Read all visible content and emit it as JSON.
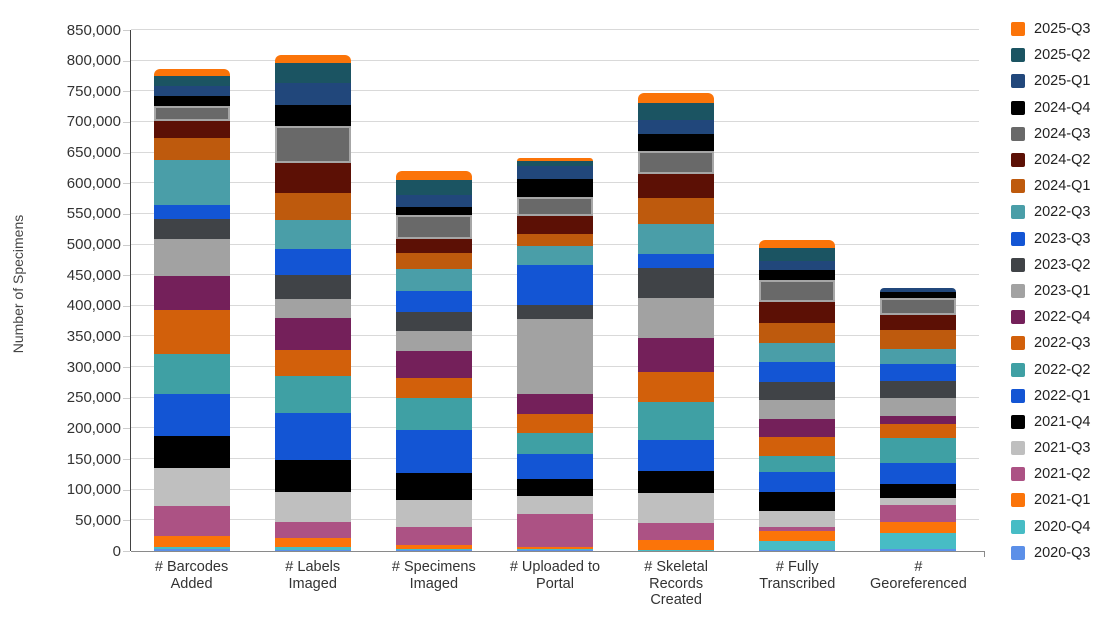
{
  "chart_data": {
    "type": "bar",
    "stacked": true,
    "title": "",
    "xlabel": "",
    "ylabel": "Number of Specimens",
    "ylim": [
      0,
      850000
    ],
    "ytick_step": 50000,
    "ytick_labels": [
      "0",
      "50,000",
      "100,000",
      "150,000",
      "200,000",
      "250,000",
      "300,000",
      "350,000",
      "400,000",
      "450,000",
      "500,000",
      "550,000",
      "600,000",
      "650,000",
      "700,000",
      "750,000",
      "800,000",
      "850,000"
    ],
    "grid": true,
    "legend_position": "right",
    "categories": [
      "# Barcodes Added",
      "# Labels Imaged",
      "# Specimens Imaged",
      "# Uploaded to Portal",
      "# Skeletal Records Created",
      "# Fully Transcribed",
      "# Georeferenced"
    ],
    "series": [
      {
        "name": "2025-Q3",
        "color": "#FB7409",
        "outlined": false,
        "values": [
          11000,
          14000,
          15000,
          4000,
          16000,
          13000,
          0
        ]
      },
      {
        "name": "2025-Q2",
        "color": "#1B5462",
        "outlined": false,
        "values": [
          17000,
          33000,
          24000,
          9000,
          28000,
          22000,
          0
        ]
      },
      {
        "name": "2025-Q1",
        "color": "#21477B",
        "outlined": false,
        "values": [
          16000,
          35000,
          20000,
          21000,
          23000,
          15000,
          8000
        ]
      },
      {
        "name": "2024-Q4",
        "color": "#000000",
        "outlined": false,
        "values": [
          17000,
          35000,
          12000,
          29000,
          27000,
          15000,
          9000
        ]
      },
      {
        "name": "2024-Q3",
        "color": "#696969",
        "outlined": true,
        "values": [
          24000,
          59000,
          39000,
          31000,
          38000,
          37000,
          27000
        ]
      },
      {
        "name": "2024-Q2",
        "color": "#5C1005",
        "outlined": false,
        "values": [
          28000,
          50000,
          24000,
          30000,
          39000,
          34000,
          25000
        ]
      },
      {
        "name": "2024-Q1",
        "color": "#BE5A0D",
        "outlined": false,
        "values": [
          36000,
          44000,
          25000,
          19000,
          42000,
          32000,
          31000
        ]
      },
      {
        "name": "2022-Q3",
        "color": "#4A9EA8",
        "outlined": false,
        "values": [
          74000,
          47000,
          37000,
          31000,
          49000,
          32000,
          24000
        ]
      },
      {
        "name": "2023-Q3",
        "color": "#1355D4",
        "outlined": false,
        "values": [
          22000,
          43000,
          34000,
          65000,
          23000,
          32000,
          29000
        ]
      },
      {
        "name": "2023-Q2",
        "color": "#404347",
        "outlined": false,
        "values": [
          33000,
          38000,
          31000,
          24000,
          49000,
          30000,
          27000
        ]
      },
      {
        "name": "2023-Q1",
        "color": "#A2A2A2",
        "outlined": false,
        "values": [
          60000,
          32000,
          33000,
          121000,
          66000,
          31000,
          30000
        ]
      },
      {
        "name": "2022-Q4",
        "color": "#74205A",
        "outlined": false,
        "values": [
          56000,
          52000,
          44000,
          33000,
          55000,
          29000,
          13000
        ]
      },
      {
        "name": "2022-Q3",
        "color": "#D2600B",
        "outlined": false,
        "values": [
          72000,
          42000,
          33000,
          32000,
          49000,
          31000,
          22000
        ]
      },
      {
        "name": "2022-Q2",
        "color": "#3FA0A4",
        "outlined": false,
        "values": [
          65000,
          61000,
          51000,
          33000,
          61000,
          26000,
          41000
        ]
      },
      {
        "name": "2022-Q1",
        "color": "#1355D4",
        "outlined": false,
        "values": [
          69000,
          77000,
          70000,
          41000,
          52000,
          33000,
          34000
        ]
      },
      {
        "name": "2021-Q4",
        "color": "#000000",
        "outlined": false,
        "values": [
          52000,
          51000,
          44000,
          28000,
          36000,
          31000,
          24000
        ]
      },
      {
        "name": "2021-Q3",
        "color": "#BFBFBF",
        "outlined": false,
        "values": [
          61000,
          49000,
          44000,
          29000,
          48000,
          25000,
          11000
        ]
      },
      {
        "name": "2021-Q2",
        "color": "#AC5284",
        "outlined": false,
        "values": [
          49000,
          27000,
          30000,
          54000,
          28000,
          8000,
          28000
        ]
      },
      {
        "name": "2021-Q1",
        "color": "#FB7409",
        "outlined": false,
        "values": [
          18000,
          14000,
          6000,
          4000,
          17000,
          15000,
          17000
        ]
      },
      {
        "name": "2020-Q4",
        "color": "#47BCC5",
        "outlined": false,
        "values": [
          4000,
          5000,
          2500,
          1500,
          500,
          15000,
          27000
        ]
      },
      {
        "name": "2020-Q3",
        "color": "#5B8FE8",
        "outlined": false,
        "values": [
          3000,
          2000,
          1500,
          1500,
          500,
          2000,
          3000
        ]
      }
    ]
  }
}
